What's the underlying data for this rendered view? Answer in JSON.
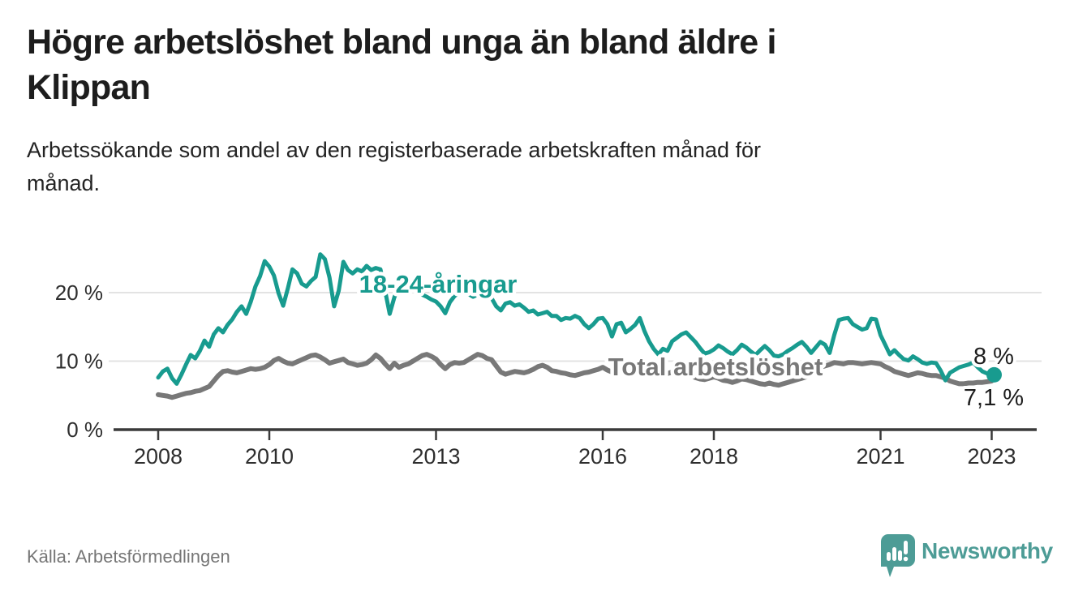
{
  "header": {
    "title": "Högre arbetslöshet bland unga än bland äldre i\nKlippan",
    "subtitle": "Arbetssökande som andel av den registerbaserade arbetskraften månad för\nmånad."
  },
  "footer": {
    "source": "Källa: Arbetsförmedlingen",
    "brand": "Newsworthy"
  },
  "colors": {
    "youth": "#189b8f",
    "total": "#787878",
    "axis": "#3a3a3a",
    "grid": "#e3e3e3",
    "text": "#1d1d1d",
    "muted": "#767676",
    "brand": "#4d9c96"
  },
  "chart_data": {
    "type": "line",
    "title": "Högre arbetslöshet bland unga än bland äldre i Klippan",
    "subtitle": "Arbetssökande som andel av den registerbaserade arbetskraften månad för månad.",
    "y_unit": "%",
    "x_start": {
      "year": 2008,
      "month": 1
    },
    "x_end": {
      "year": 2023,
      "month": 1
    },
    "x_ticks": [
      2008,
      2010,
      2013,
      2016,
      2018,
      2021,
      2023
    ],
    "y_ticks": [
      {
        "value": 0,
        "label": "0 %"
      },
      {
        "value": 10,
        "label": "10 %"
      },
      {
        "value": 20,
        "label": "20 %"
      }
    ],
    "ylim": [
      0,
      26
    ],
    "grid": "horizontal",
    "legend_position": "inline-labels",
    "series": [
      {
        "name": "Total arbetslöshet",
        "color_key": "total",
        "end_label": "7,1 %",
        "end_dot": false,
        "values": [
          5.1,
          5.0,
          4.9,
          4.7,
          4.9,
          5.1,
          5.3,
          5.4,
          5.6,
          5.7,
          6.0,
          6.3,
          7.1,
          7.9,
          8.5,
          8.6,
          8.4,
          8.3,
          8.5,
          8.7,
          8.9,
          8.8,
          8.9,
          9.1,
          9.5,
          10.1,
          10.4,
          10.0,
          9.7,
          9.6,
          9.9,
          10.2,
          10.5,
          10.8,
          10.9,
          10.6,
          10.2,
          9.7,
          9.9,
          10.1,
          10.3,
          9.8,
          9.6,
          9.4,
          9.5,
          9.7,
          10.2,
          10.9,
          10.4,
          9.6,
          8.9,
          9.7,
          9.1,
          9.4,
          9.6,
          10.0,
          10.4,
          10.8,
          11.0,
          10.7,
          10.3,
          9.5,
          8.9,
          9.5,
          9.8,
          9.7,
          9.8,
          10.2,
          10.6,
          11.0,
          10.8,
          10.4,
          10.2,
          9.3,
          8.4,
          8.1,
          8.3,
          8.5,
          8.4,
          8.3,
          8.5,
          8.8,
          9.2,
          9.4,
          9.1,
          8.6,
          8.5,
          8.3,
          8.2,
          8.0,
          7.9,
          8.1,
          8.3,
          8.4,
          8.6,
          8.8,
          9.1,
          8.7,
          8.4,
          8.6,
          8.8,
          8.7,
          8.8,
          9.0,
          9.2,
          9.0,
          8.8,
          8.6,
          8.5,
          8.3,
          8.2,
          8.4,
          8.6,
          8.4,
          8.2,
          7.9,
          7.6,
          7.4,
          7.3,
          7.5,
          7.7,
          7.5,
          7.2,
          7.1,
          6.9,
          7.1,
          7.4,
          7.3,
          7.1,
          6.9,
          6.7,
          6.6,
          6.8,
          6.6,
          6.5,
          6.7,
          6.9,
          7.1,
          7.3,
          7.5,
          7.7,
          8.0,
          8.6,
          9.1,
          9.3,
          9.5,
          9.8,
          9.7,
          9.6,
          9.8,
          9.8,
          9.7,
          9.6,
          9.7,
          9.8,
          9.7,
          9.6,
          9.2,
          8.9,
          8.5,
          8.3,
          8.1,
          7.9,
          8.1,
          8.3,
          8.2,
          8.0,
          7.9,
          7.9,
          7.7,
          7.5,
          7.1,
          6.9,
          6.7,
          6.7,
          6.8,
          6.8,
          6.9,
          6.9,
          7.0,
          7.1
        ]
      },
      {
        "name": "18-24-åringar",
        "color_key": "youth",
        "end_label": "8 %",
        "end_dot": true,
        "values": [
          7.6,
          8.5,
          8.9,
          7.5,
          6.7,
          8.0,
          9.5,
          10.9,
          10.4,
          11.5,
          13.0,
          12.1,
          13.9,
          14.8,
          14.2,
          15.3,
          16.1,
          17.2,
          18.0,
          16.9,
          18.7,
          20.9,
          22.4,
          24.6,
          23.8,
          22.5,
          19.9,
          18.1,
          20.6,
          23.4,
          22.8,
          21.3,
          20.9,
          21.7,
          22.3,
          25.6,
          24.9,
          22.2,
          18.0,
          20.3,
          24.5,
          23.3,
          22.8,
          23.4,
          23.1,
          23.9,
          23.3,
          23.6,
          23.4,
          20.3,
          16.9,
          19.3,
          20.9,
          21.5,
          21.0,
          20.6,
          20.1,
          19.7,
          19.4,
          19.0,
          18.7,
          18.0,
          17.0,
          18.6,
          19.5,
          20.0,
          20.4,
          19.8,
          19.4,
          19.7,
          19.3,
          19.5,
          19.2,
          18.0,
          17.4,
          18.4,
          18.6,
          18.1,
          18.3,
          17.8,
          17.2,
          17.4,
          16.8,
          17.0,
          17.2,
          16.6,
          16.6,
          16.0,
          16.3,
          16.2,
          16.6,
          16.3,
          15.4,
          14.8,
          15.4,
          16.2,
          16.3,
          15.4,
          13.6,
          15.4,
          15.6,
          14.2,
          14.7,
          15.3,
          16.3,
          14.4,
          12.9,
          11.8,
          11.0,
          11.8,
          11.5,
          12.9,
          13.4,
          13.9,
          14.2,
          13.5,
          12.8,
          11.9,
          11.1,
          11.3,
          11.7,
          12.3,
          11.9,
          11.4,
          11.0,
          11.6,
          12.4,
          12.0,
          11.4,
          10.9,
          11.6,
          12.2,
          11.6,
          10.8,
          10.7,
          11.0,
          11.5,
          11.9,
          12.4,
          12.8,
          12.1,
          11.2,
          12.0,
          12.8,
          12.4,
          11.2,
          13.8,
          16.0,
          16.2,
          16.3,
          15.4,
          15.0,
          14.6,
          14.8,
          16.2,
          16.1,
          13.8,
          12.4,
          11.0,
          11.6,
          10.9,
          10.3,
          10.1,
          10.7,
          10.3,
          9.8,
          9.6,
          9.8,
          9.7,
          8.6,
          7.2,
          8.3,
          8.7,
          9.1,
          9.3,
          9.5,
          9.8,
          9.1,
          8.5,
          8.2,
          8.0
        ]
      }
    ]
  }
}
